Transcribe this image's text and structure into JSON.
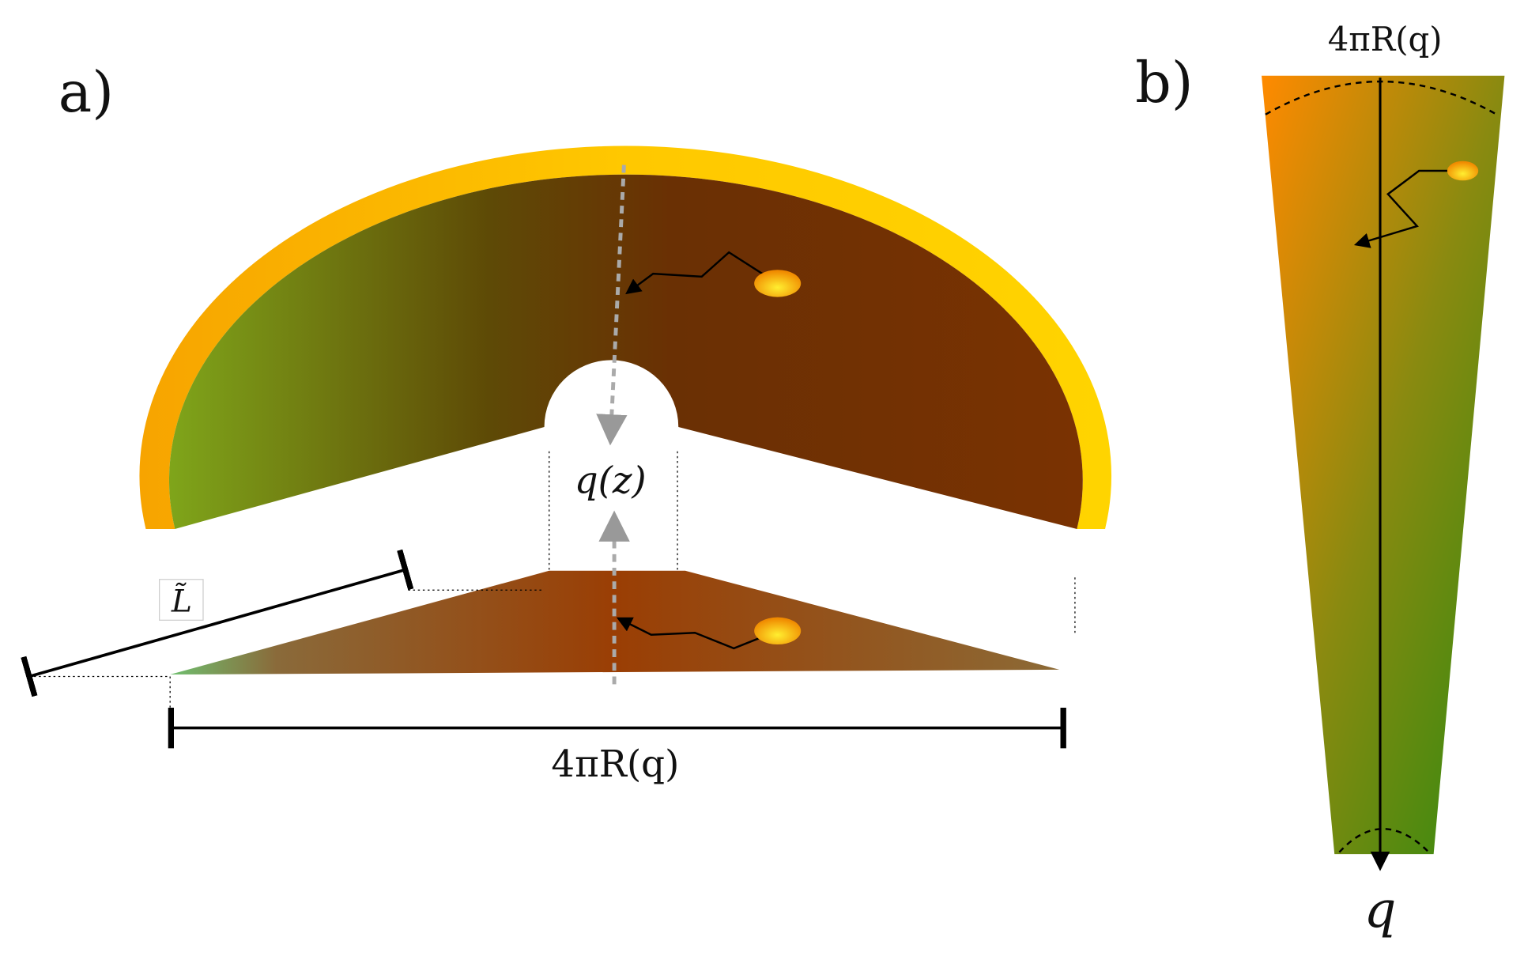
{
  "panel_a": {
    "label": "a)",
    "center_label": "q(z)",
    "length_label": "L̃",
    "width_label": "4πR(q)"
  },
  "panel_b": {
    "label": "b)",
    "width_label": "4πR(q)",
    "axis_label": "q"
  }
}
